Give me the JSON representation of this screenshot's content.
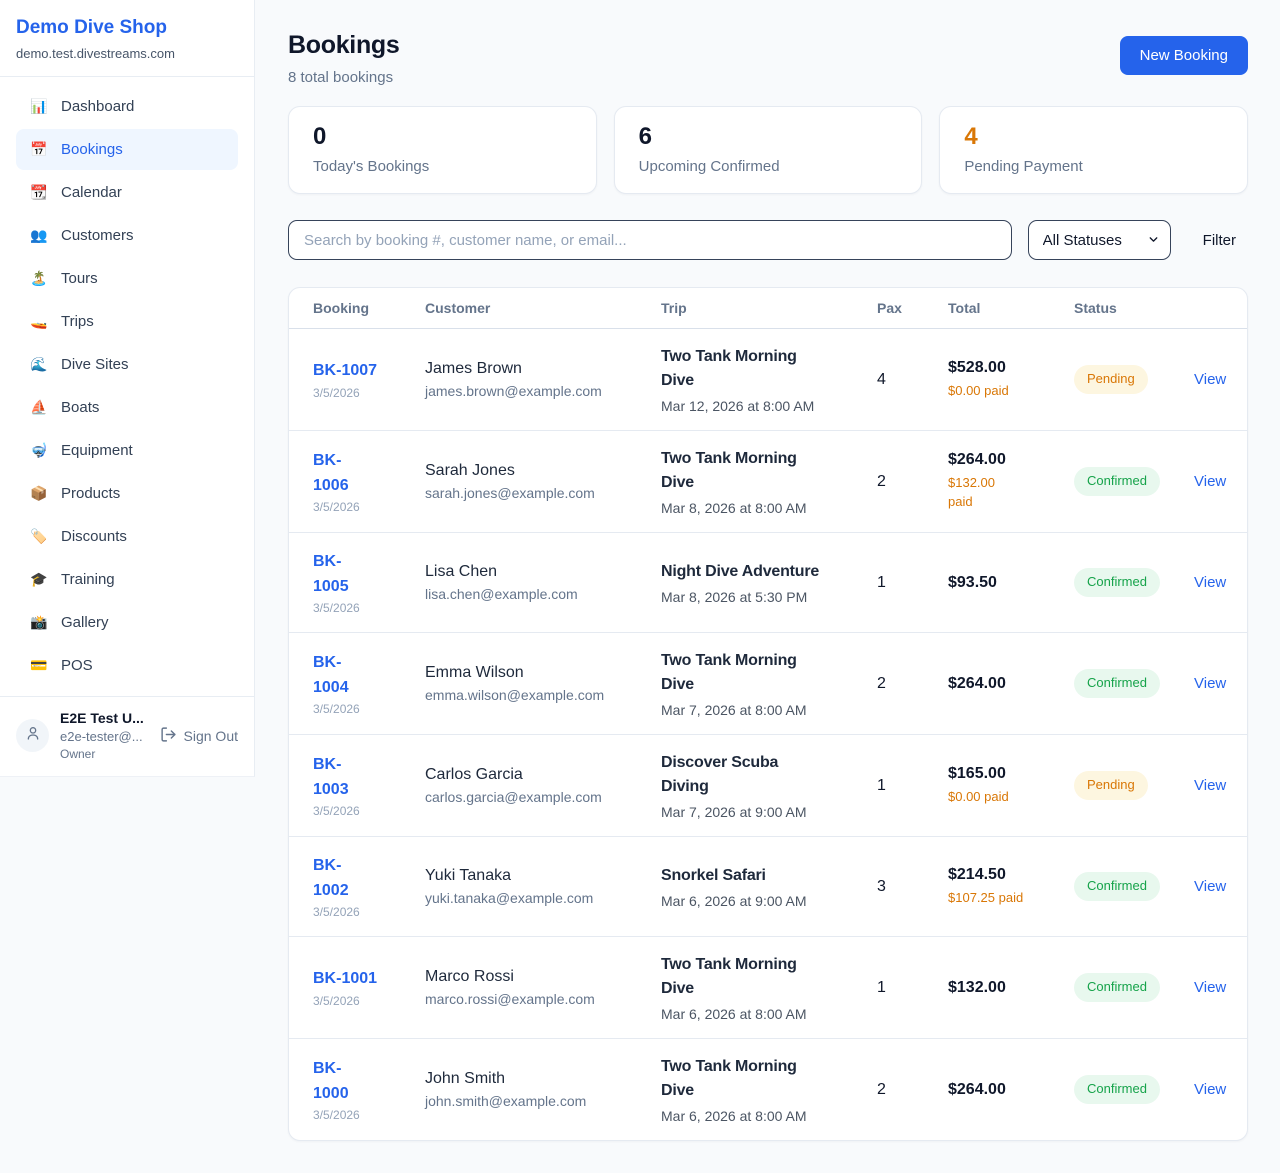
{
  "colors": {
    "brand_blue": "#2563eb",
    "pending_orange": "#d97706",
    "confirmed_green": "#16a34a",
    "pending_badge_bg": "#fdf6e0",
    "confirmed_badge_bg": "#e8f8ee",
    "page_bg": "#f8fafc"
  },
  "sidebar": {
    "brand": {
      "name": "Demo Dive Shop",
      "domain": "demo.test.divestreams.com"
    },
    "items": [
      {
        "icon": "📊",
        "icon_name": "bar-chart-icon",
        "label": "Dashboard",
        "active": false
      },
      {
        "icon": "📅",
        "icon_name": "calendar-page-icon",
        "label": "Bookings",
        "active": true
      },
      {
        "icon": "📆",
        "icon_name": "tear-off-calendar-icon",
        "label": "Calendar",
        "active": false
      },
      {
        "icon": "👥",
        "icon_name": "people-icon",
        "label": "Customers",
        "active": false
      },
      {
        "icon": "🏝️",
        "icon_name": "island-icon",
        "label": "Tours",
        "active": false
      },
      {
        "icon": "🚤",
        "icon_name": "speedboat-icon",
        "label": "Trips",
        "active": false
      },
      {
        "icon": "🌊",
        "icon_name": "wave-icon",
        "label": "Dive Sites",
        "active": false
      },
      {
        "icon": "⛵",
        "icon_name": "sailboat-icon",
        "label": "Boats",
        "active": false
      },
      {
        "icon": "🤿",
        "icon_name": "diving-mask-icon",
        "label": "Equipment",
        "active": false
      },
      {
        "icon": "📦",
        "icon_name": "package-icon",
        "label": "Products",
        "active": false
      },
      {
        "icon": "🏷️",
        "icon_name": "tag-icon",
        "label": "Discounts",
        "active": false
      },
      {
        "icon": "🎓",
        "icon_name": "graduation-cap-icon",
        "label": "Training",
        "active": false
      },
      {
        "icon": "📸",
        "icon_name": "camera-icon",
        "label": "Gallery",
        "active": false
      },
      {
        "icon": "💳",
        "icon_name": "credit-card-icon",
        "label": "POS",
        "active": false
      }
    ],
    "user": {
      "name": "E2E Test U...",
      "email": "e2e-tester@...",
      "role": "Owner",
      "sign_out_label": "Sign Out"
    }
  },
  "header": {
    "title": "Bookings",
    "subtitle": "8 total bookings",
    "new_booking_label": "New Booking"
  },
  "stats": [
    {
      "value": "0",
      "label": "Today's Bookings",
      "accent": "dark"
    },
    {
      "value": "6",
      "label": "Upcoming Confirmed",
      "accent": "dark"
    },
    {
      "value": "4",
      "label": "Pending Payment",
      "accent": "orange"
    }
  ],
  "toolbar": {
    "search_placeholder": "Search by booking #, customer name, or email...",
    "status_filter": "All Statuses",
    "filter_label": "Filter"
  },
  "table": {
    "columns": [
      "Booking",
      "Customer",
      "Trip",
      "Pax",
      "Total",
      "Status"
    ],
    "view_label": "View",
    "rows": [
      {
        "id": "BK-1007",
        "date": "3/5/2026",
        "customer": "James Brown",
        "email": "james.brown@example.com",
        "trip": "Two Tank Morning\nDive",
        "trip_time": "Mar 12, 2026 at 8:00 AM",
        "pax": "4",
        "total": "$528.00",
        "paid": "$0.00 paid",
        "status": "Pending"
      },
      {
        "id": "BK-\n1006",
        "date": "3/5/2026",
        "customer": "Sarah Jones",
        "email": "sarah.jones@example.com",
        "trip": "Two Tank Morning\nDive",
        "trip_time": "Mar 8, 2026 at 8:00 AM",
        "pax": "2",
        "total": "$264.00",
        "paid": "$132.00\npaid",
        "status": "Confirmed"
      },
      {
        "id": "BK-\n1005",
        "date": "3/5/2026",
        "customer": "Lisa Chen",
        "email": "lisa.chen@example.com",
        "trip": "Night Dive Adventure",
        "trip_time": "Mar 8, 2026 at 5:30 PM",
        "pax": "1",
        "total": "$93.50",
        "paid": "",
        "status": "Confirmed"
      },
      {
        "id": "BK-\n1004",
        "date": "3/5/2026",
        "customer": "Emma Wilson",
        "email": "emma.wilson@example.com",
        "trip": "Two Tank Morning\nDive",
        "trip_time": "Mar 7, 2026 at 8:00 AM",
        "pax": "2",
        "total": "$264.00",
        "paid": "",
        "status": "Confirmed"
      },
      {
        "id": "BK-\n1003",
        "date": "3/5/2026",
        "customer": "Carlos Garcia",
        "email": "carlos.garcia@example.com",
        "trip": "Discover Scuba\nDiving",
        "trip_time": "Mar 7, 2026 at 9:00 AM",
        "pax": "1",
        "total": "$165.00",
        "paid": "$0.00 paid",
        "status": "Pending"
      },
      {
        "id": "BK-\n1002",
        "date": "3/5/2026",
        "customer": "Yuki Tanaka",
        "email": "yuki.tanaka@example.com",
        "trip": "Snorkel Safari",
        "trip_time": "Mar 6, 2026 at 9:00 AM",
        "pax": "3",
        "total": "$214.50",
        "paid": "$107.25 paid",
        "status": "Confirmed"
      },
      {
        "id": "BK-1001",
        "date": "3/5/2026",
        "customer": "Marco Rossi",
        "email": "marco.rossi@example.com",
        "trip": "Two Tank Morning\nDive",
        "trip_time": "Mar 6, 2026 at 8:00 AM",
        "pax": "1",
        "total": "$132.00",
        "paid": "",
        "status": "Confirmed"
      },
      {
        "id": "BK-\n1000",
        "date": "3/5/2026",
        "customer": "John Smith",
        "email": "john.smith@example.com",
        "trip": "Two Tank Morning\nDive",
        "trip_time": "Mar 6, 2026 at 8:00 AM",
        "pax": "2",
        "total": "$264.00",
        "paid": "",
        "status": "Confirmed"
      }
    ]
  }
}
